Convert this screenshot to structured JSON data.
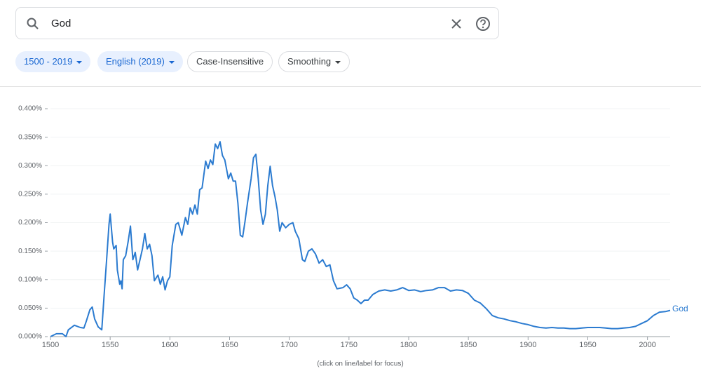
{
  "search": {
    "query": "God"
  },
  "filters": [
    "1500 - 2019",
    "English (2019)",
    "Case-Insensitive",
    "Smoothing"
  ],
  "chart_data": {
    "type": "line",
    "note": "(click on line/label for focus)",
    "x": [
      1500,
      1505,
      1510,
      1513,
      1515,
      1520,
      1525,
      1528,
      1530,
      1533,
      1535,
      1537,
      1540,
      1543,
      1545,
      1547,
      1549,
      1550,
      1552,
      1553,
      1555,
      1556,
      1558,
      1559,
      1560,
      1561,
      1563,
      1565,
      1567,
      1569,
      1571,
      1573,
      1575,
      1577,
      1579,
      1581,
      1583,
      1585,
      1587,
      1590,
      1592,
      1594,
      1596,
      1598,
      1600,
      1602,
      1605,
      1607,
      1610,
      1613,
      1615,
      1617,
      1619,
      1621,
      1623,
      1625,
      1627,
      1630,
      1632,
      1634,
      1636,
      1638,
      1640,
      1642,
      1644,
      1646,
      1649,
      1651,
      1653,
      1655,
      1657,
      1659,
      1661,
      1663,
      1665,
      1668,
      1670,
      1672,
      1674,
      1676,
      1678,
      1680,
      1682,
      1684,
      1686,
      1688,
      1690,
      1692,
      1694,
      1697,
      1700,
      1703,
      1705,
      1708,
      1711,
      1713,
      1716,
      1719,
      1722,
      1725,
      1728,
      1731,
      1734,
      1737,
      1740,
      1745,
      1748,
      1751,
      1754,
      1757,
      1760,
      1763,
      1766,
      1770,
      1775,
      1780,
      1785,
      1790,
      1795,
      1800,
      1805,
      1810,
      1815,
      1820,
      1825,
      1830,
      1835,
      1840,
      1845,
      1850,
      1855,
      1860,
      1865,
      1870,
      1875,
      1880,
      1885,
      1890,
      1895,
      1900,
      1905,
      1910,
      1915,
      1920,
      1925,
      1930,
      1935,
      1940,
      1945,
      1950,
      1955,
      1960,
      1965,
      1970,
      1975,
      1980,
      1985,
      1990,
      1995,
      2000,
      2005,
      2010,
      2015,
      2019
    ],
    "series": [
      {
        "name": "God",
        "color": "#2b7bd0",
        "values": [
          0,
          0.005,
          0.005,
          0,
          0.012,
          0.02,
          0.016,
          0.015,
          0.027,
          0.047,
          0.052,
          0.031,
          0.017,
          0.012,
          0.074,
          0.135,
          0.197,
          0.215,
          0.166,
          0.154,
          0.16,
          0.117,
          0.092,
          0.098,
          0.084,
          0.135,
          0.142,
          0.166,
          0.194,
          0.135,
          0.148,
          0.117,
          0.135,
          0.154,
          0.181,
          0.154,
          0.162,
          0.142,
          0.098,
          0.108,
          0.092,
          0.105,
          0.082,
          0.098,
          0.105,
          0.16,
          0.197,
          0.2,
          0.178,
          0.209,
          0.197,
          0.226,
          0.215,
          0.231,
          0.215,
          0.258,
          0.261,
          0.308,
          0.295,
          0.31,
          0.302,
          0.338,
          0.33,
          0.342,
          0.318,
          0.31,
          0.277,
          0.287,
          0.273,
          0.273,
          0.234,
          0.178,
          0.175,
          0.203,
          0.234,
          0.277,
          0.314,
          0.32,
          0.277,
          0.222,
          0.197,
          0.215,
          0.265,
          0.299,
          0.265,
          0.246,
          0.222,
          0.185,
          0.2,
          0.191,
          0.197,
          0.2,
          0.185,
          0.172,
          0.135,
          0.132,
          0.15,
          0.154,
          0.145,
          0.129,
          0.135,
          0.123,
          0.126,
          0.098,
          0.084,
          0.086,
          0.091,
          0.084,
          0.068,
          0.064,
          0.058,
          0.064,
          0.064,
          0.074,
          0.08,
          0.082,
          0.08,
          0.082,
          0.086,
          0.081,
          0.082,
          0.079,
          0.081,
          0.082,
          0.086,
          0.086,
          0.08,
          0.082,
          0.081,
          0.076,
          0.064,
          0.059,
          0.049,
          0.037,
          0.033,
          0.031,
          0.028,
          0.026,
          0.023,
          0.021,
          0.018,
          0.016,
          0.015,
          0.016,
          0.015,
          0.015,
          0.014,
          0.014,
          0.015,
          0.016,
          0.016,
          0.016,
          0.015,
          0.014,
          0.014,
          0.015,
          0.016,
          0.018,
          0.023,
          0.028,
          0.037,
          0.043,
          0.044,
          0.046
        ]
      }
    ],
    "xlim": [
      1500,
      2019
    ],
    "xticks": [
      1500,
      1550,
      1600,
      1650,
      1700,
      1750,
      1800,
      1850,
      1900,
      1950,
      2000
    ],
    "ylim": [
      0,
      0.4
    ],
    "yticks": [
      {
        "value": 0,
        "label": "0.000%"
      },
      {
        "value": 0.05,
        "label": "0.050%"
      },
      {
        "value": 0.1,
        "label": "0.100%"
      },
      {
        "value": 0.15,
        "label": "0.150%"
      },
      {
        "value": 0.2,
        "label": "0.200%"
      },
      {
        "value": 0.25,
        "label": "0.250%"
      },
      {
        "value": 0.3,
        "label": "0.300%"
      },
      {
        "value": 0.35,
        "label": "0.350%"
      },
      {
        "value": 0.4,
        "label": "0.400%"
      }
    ],
    "grid": true
  }
}
